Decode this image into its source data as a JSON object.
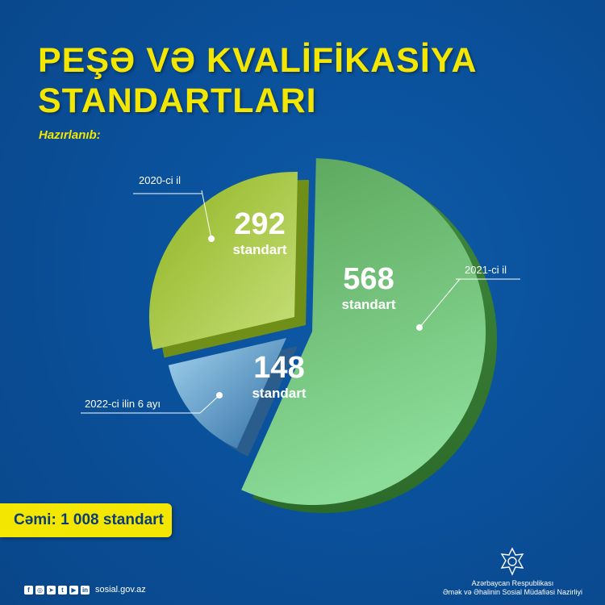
{
  "header": {
    "title_line1": "PEŞƏ VƏ KVALİFİKASİYA",
    "title_line2": "STANDARTLARI",
    "subtitle": "Hazırlanıb:"
  },
  "chart_data": {
    "type": "pie",
    "title": "PEŞƏ VƏ KVALİFİKASİYA STANDARTLARI",
    "subtitle": "Hazırlanıb:",
    "unit": "standart",
    "categories": [
      "2020-ci il",
      "2021-ci il",
      "2022-ci ilin 6 ayı"
    ],
    "values": [
      292,
      568,
      148
    ],
    "colors": [
      "#a9c93a",
      "#5fb86a",
      "#5b93c4"
    ],
    "total_label": "Cəmi: 1 008 standart"
  },
  "footer": {
    "site": "sosial.gov.az",
    "ministry_line1": "Azərbaycan Respublikası",
    "ministry_line2": "Əmək və Əhalinin Sosial Müdafiəsi Nazirliyi",
    "social_icons": [
      "facebook-icon",
      "instagram-icon",
      "telegram-icon",
      "twitter-icon",
      "youtube-icon",
      "linkedin-icon"
    ]
  }
}
